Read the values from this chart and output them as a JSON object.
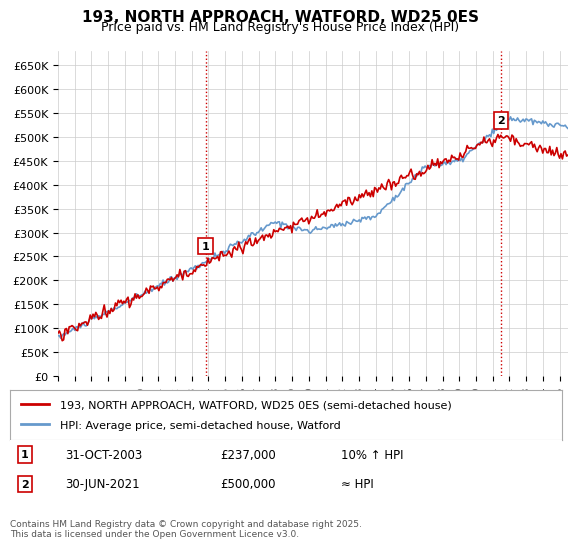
{
  "title": "193, NORTH APPROACH, WATFORD, WD25 0ES",
  "subtitle": "Price paid vs. HM Land Registry's House Price Index (HPI)",
  "ylabel_ticks": [
    "£0",
    "£50K",
    "£100K",
    "£150K",
    "£200K",
    "£250K",
    "£300K",
    "£350K",
    "£400K",
    "£450K",
    "£500K",
    "£550K",
    "£600K",
    "£650K"
  ],
  "ytick_values": [
    0,
    50000,
    100000,
    150000,
    200000,
    250000,
    300000,
    350000,
    400000,
    450000,
    500000,
    550000,
    600000,
    650000
  ],
  "ylim": [
    0,
    680000
  ],
  "xlim_start": 1995.0,
  "xlim_end": 2025.5,
  "line1_color": "#cc0000",
  "line2_color": "#6699cc",
  "line1_label": "193, NORTH APPROACH, WATFORD, WD25 0ES (semi-detached house)",
  "line2_label": "HPI: Average price, semi-detached house, Watford",
  "marker1_date": 2003.83,
  "marker1_price": 237000,
  "marker1_label": "1",
  "marker1_text": "31-OCT-2003    £237,000    10% ↑ HPI",
  "marker2_date": 2021.5,
  "marker2_price": 500000,
  "marker2_label": "2",
  "marker2_text": "30-JUN-2021    £500,000    ≈ HPI",
  "vline1_x": 2003.83,
  "vline2_x": 2021.5,
  "vline_color": "#cc0000",
  "vline_style": ":",
  "grid_color": "#cccccc",
  "bg_color": "#ffffff",
  "footer_text": "Contains HM Land Registry data © Crown copyright and database right 2025.\nThis data is licensed under the Open Government Licence v3.0.",
  "xtick_years": [
    1995,
    1996,
    1997,
    1998,
    1999,
    2000,
    2001,
    2002,
    2003,
    2004,
    2005,
    2006,
    2007,
    2008,
    2009,
    2010,
    2011,
    2012,
    2013,
    2014,
    2015,
    2016,
    2017,
    2018,
    2019,
    2020,
    2021,
    2022,
    2023,
    2024,
    2025
  ]
}
